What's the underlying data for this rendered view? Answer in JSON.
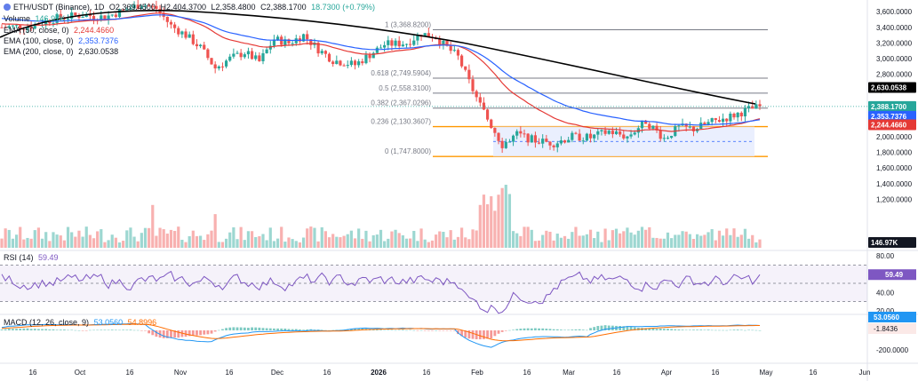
{
  "symbol": {
    "title": "ETH/USDT (Binance), 1D",
    "open": "O2,369.4500",
    "high": "H2,404.3700",
    "low": "L2,358.4800",
    "close": "C2,388.1700",
    "change": "18.7300 (+0.79%)"
  },
  "legend": {
    "volume": {
      "label": "Volume",
      "value": "146.97K"
    },
    "ema50": {
      "label": "EMA (50, close, 0)",
      "value": "2,244.4660"
    },
    "ema100": {
      "label": "EMA (100, close, 0)",
      "value": "2,353.7376"
    },
    "ema200": {
      "label": "EMA (200, close, 0)",
      "value": "2,630.0538"
    },
    "rsi": {
      "label": "RSI (14)",
      "value": "59.49"
    },
    "macd": {
      "label": "MACD (12, 26, close, 9)",
      "v1": "53.0560",
      "v2": "54.8996"
    }
  },
  "badges": {
    "ema200": "2,630.0538",
    "last": "2,388.1700",
    "ema100": "2,353.7376",
    "ema50": "2,244.4660",
    "volume": "146.97K",
    "rsi": "59.49",
    "macd": "53.0560",
    "hist": "-1.8436"
  },
  "colors": {
    "up": "#26a69a",
    "down": "#ef5350",
    "ema50": "#e53935",
    "ema100": "#2962ff",
    "ema200": "#000000",
    "rsi": "#7e57c2",
    "macd": "#2196f3",
    "signal": "#ff6d00",
    "fib": "#787b86",
    "box": "#ff9800"
  },
  "chart_data": [
    {
      "type": "candlestick",
      "title": "ETH/USDT (Binance), 1D",
      "y_ticks": [
        "3,600.0000",
        "3,400.0000",
        "3,200.0000",
        "3,000.0000",
        "2,800.0000",
        "2,600.0000",
        "2,400.0000",
        "2,200.0000",
        "2,000.0000",
        "1,800.0000",
        "1,600.0000",
        "1,400.0000",
        "1,200.0000"
      ],
      "ylim": [
        1100,
        3720
      ],
      "x_ticks": [
        "16",
        "Oct",
        "16",
        "Nov",
        "16",
        "Dec",
        "16",
        "2026",
        "16",
        "Feb",
        "16",
        "Mar",
        "16",
        "Apr",
        "16",
        "May",
        "16",
        "Jun"
      ],
      "fib_levels": [
        {
          "label": "1 (3,368.8200)",
          "value": 3368.82
        },
        {
          "label": "0.618 (2,749.5904)",
          "value": 2749.5904
        },
        {
          "label": "0.5 (2,558.3100)",
          "value": 2558.31
        },
        {
          "label": "0.382 (2,367.0296)",
          "value": 2367.0296
        },
        {
          "label": "0.236 (2,130.3607)",
          "value": 2130.3607
        },
        {
          "label": "0 (1,747.8000)",
          "value": 1747.8
        }
      ],
      "last_close": 2388.17,
      "ema_last": {
        "ema50": 2244.466,
        "ema100": 2353.7376,
        "ema200": 2630.0538
      },
      "volume_last": "146.97K"
    },
    {
      "type": "line",
      "title": "RSI (14)",
      "y_ticks": [
        "80.00",
        "40.00",
        "20.00"
      ],
      "ylim": [
        16,
        84
      ],
      "bands": [
        70,
        50,
        30
      ],
      "last": 59.49
    },
    {
      "type": "bar",
      "title": "MACD (12, 26, close, 9)",
      "y_ticks": [
        "-200.0000"
      ],
      "ylim": [
        -240,
        120
      ],
      "macd_last": 53.056,
      "signal_last": 54.8996,
      "hist_last": -1.8436
    }
  ]
}
